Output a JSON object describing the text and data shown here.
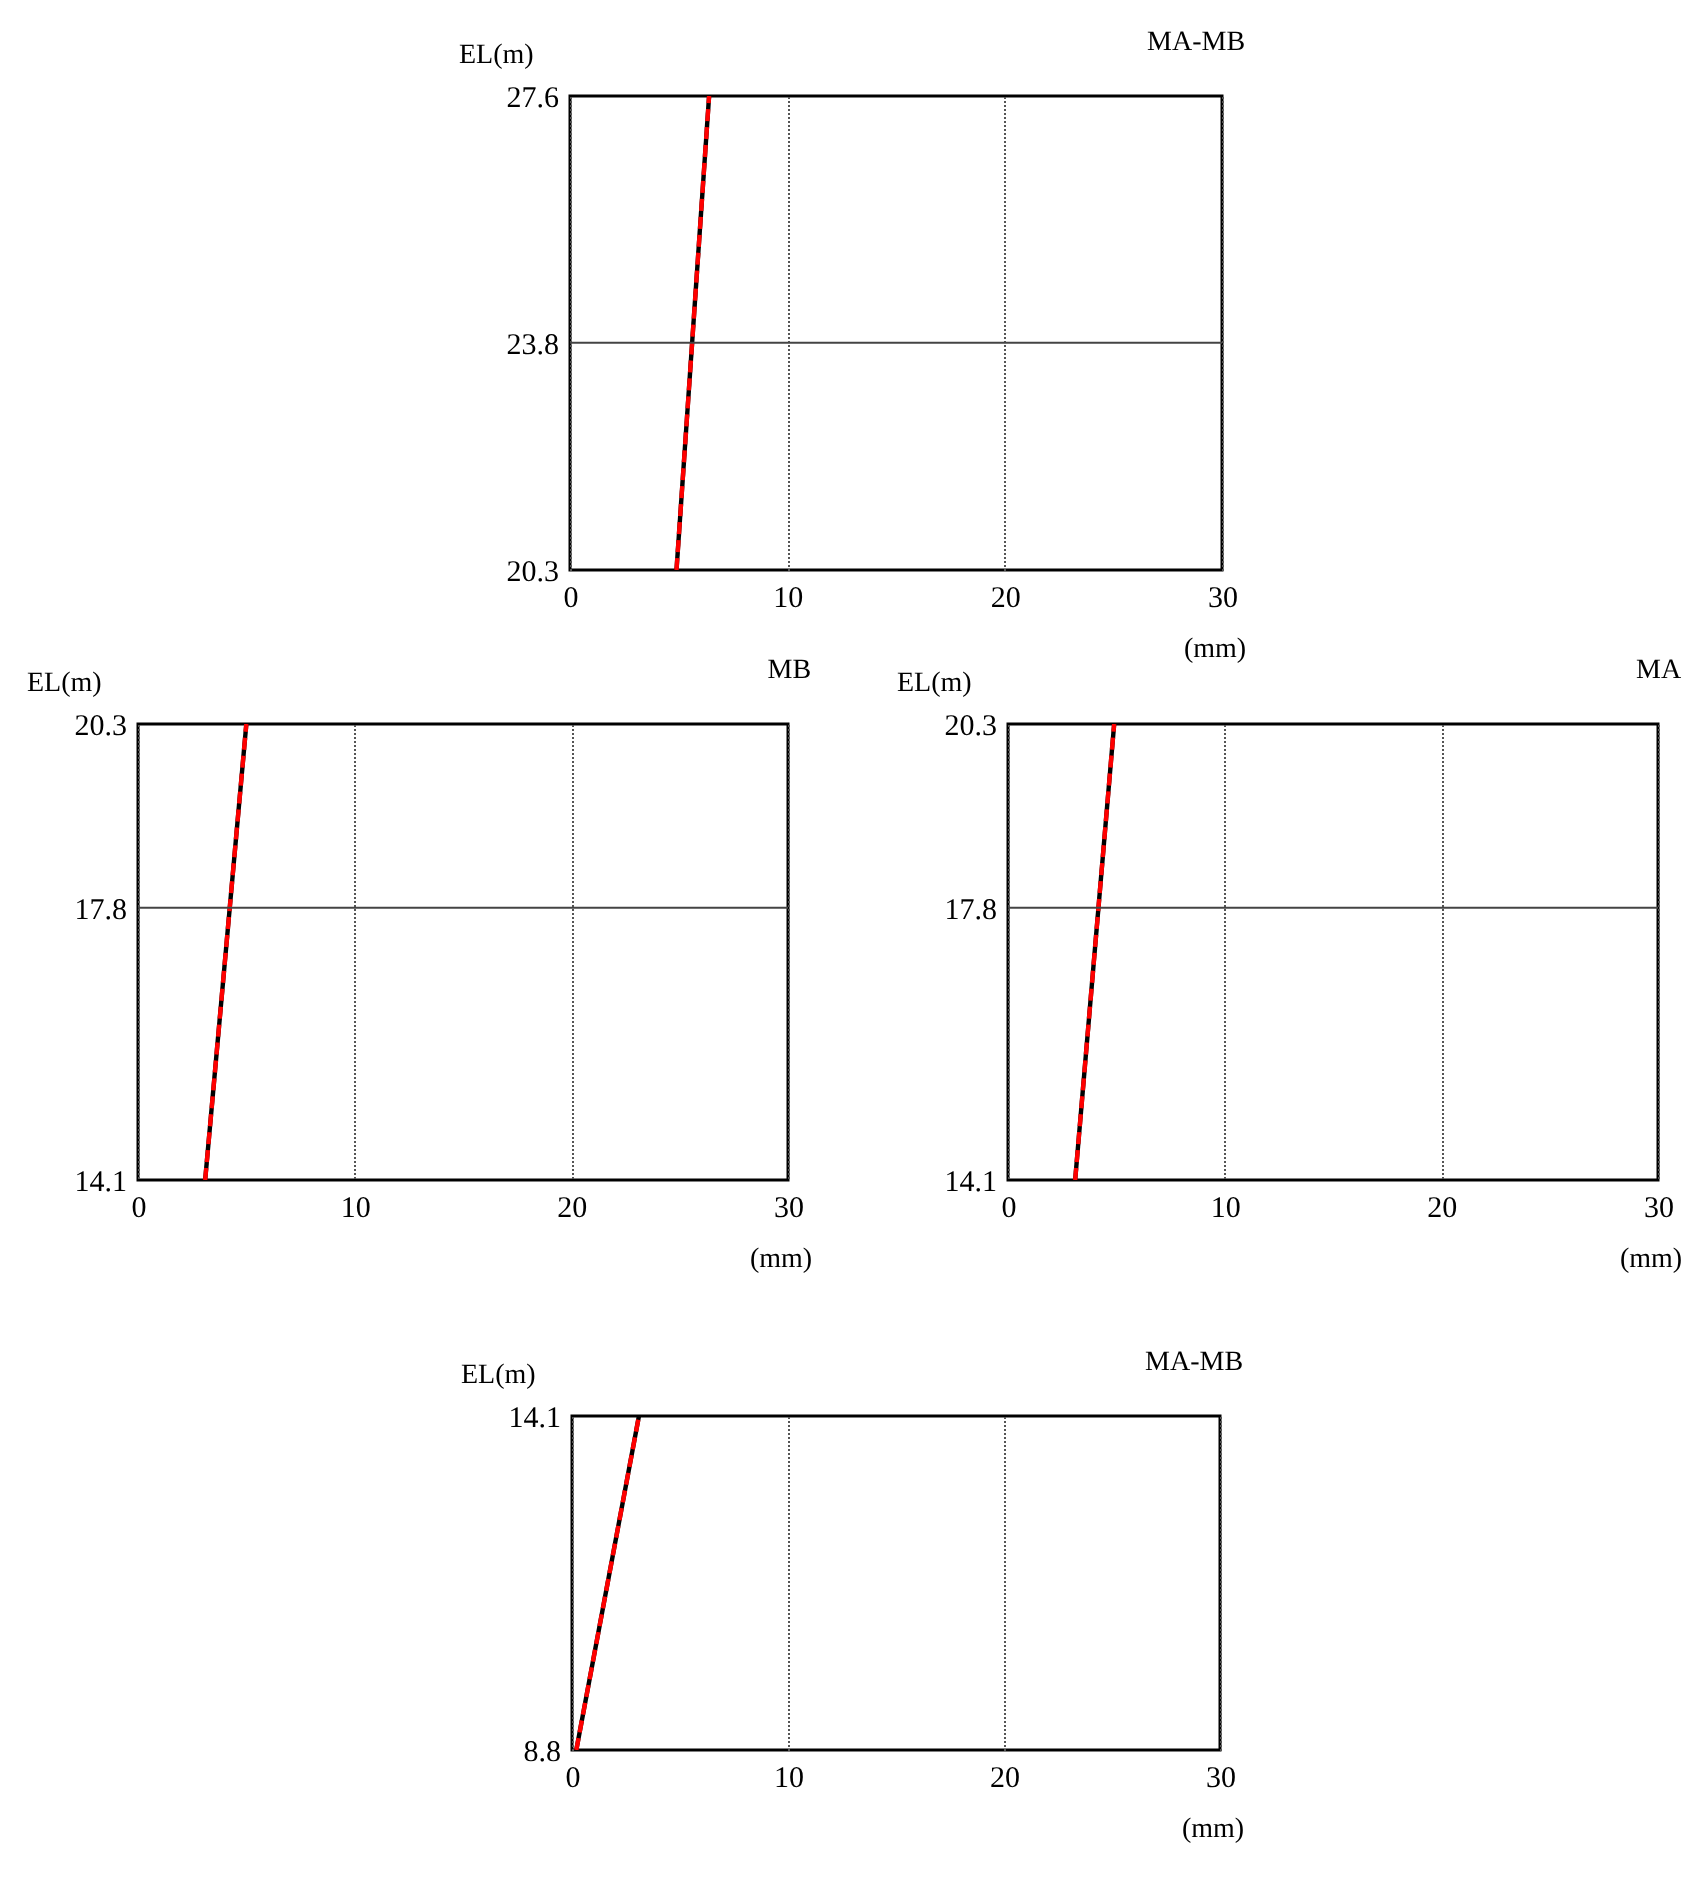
{
  "chart_data": [
    {
      "type": "line",
      "title": "MA-MB",
      "xlabel": "(mm)",
      "ylabel": "EL(m)",
      "xlim": [
        0,
        30
      ],
      "xticks": [
        0,
        10,
        20,
        30
      ],
      "ylim": [
        20.3,
        27.6
      ],
      "yticks": [
        20.3,
        23.8,
        27.6
      ],
      "grid": "x",
      "ref_lines": [
        {
          "axis": "y",
          "value": 23.8,
          "color": "#444444"
        }
      ],
      "series": [
        {
          "color": "#000000",
          "line_style": "solid",
          "x": [
            4.9,
            6.4
          ],
          "values": [
            20.3,
            27.6
          ]
        },
        {
          "color": "#ff0000",
          "line_style": "dashed",
          "x": [
            4.9,
            6.4
          ],
          "values": [
            20.3,
            27.6
          ]
        }
      ]
    },
    {
      "type": "line",
      "title": "MB",
      "xlabel": "(mm)",
      "ylabel": "EL(m)",
      "xlim": [
        0,
        30
      ],
      "xticks": [
        0,
        10,
        20,
        30
      ],
      "ylim": [
        14.1,
        20.3
      ],
      "yticks": [
        14.1,
        17.8,
        20.3
      ],
      "grid": "x",
      "ref_lines": [
        {
          "axis": "y",
          "value": 17.8,
          "color": "#444444"
        }
      ],
      "series": [
        {
          "color": "#000000",
          "line_style": "solid",
          "x": [
            3.1,
            5.0
          ],
          "values": [
            14.1,
            20.3
          ]
        },
        {
          "color": "#ff0000",
          "line_style": "dashed",
          "x": [
            3.1,
            5.0
          ],
          "values": [
            14.1,
            20.3
          ]
        }
      ]
    },
    {
      "type": "line",
      "title": "MA",
      "xlabel": "(mm)",
      "ylabel": "EL(m)",
      "xlim": [
        0,
        30
      ],
      "xticks": [
        0,
        10,
        20,
        30
      ],
      "ylim": [
        14.1,
        20.3
      ],
      "yticks": [
        14.1,
        17.8,
        20.3
      ],
      "grid": "x",
      "ref_lines": [
        {
          "axis": "y",
          "value": 17.8,
          "color": "#444444"
        }
      ],
      "series": [
        {
          "color": "#000000",
          "line_style": "solid",
          "x": [
            3.1,
            4.9
          ],
          "values": [
            14.1,
            20.3
          ]
        },
        {
          "color": "#ff0000",
          "line_style": "dashed",
          "x": [
            3.1,
            4.9
          ],
          "values": [
            14.1,
            20.3
          ]
        }
      ]
    },
    {
      "type": "line",
      "title": "MA-MB",
      "xlabel": "(mm)",
      "ylabel": "EL(m)",
      "xlim": [
        0,
        30
      ],
      "xticks": [
        0,
        10,
        20,
        30
      ],
      "ylim": [
        8.8,
        14.1
      ],
      "yticks": [
        8.8,
        14.1
      ],
      "grid": "x",
      "series": [
        {
          "color": "#000000",
          "line_style": "solid",
          "x": [
            0.2,
            3.1
          ],
          "values": [
            8.8,
            14.1
          ]
        },
        {
          "color": "#ff0000",
          "line_style": "dashed",
          "x": [
            0.2,
            3.1
          ],
          "values": [
            8.8,
            14.1
          ]
        }
      ]
    }
  ]
}
